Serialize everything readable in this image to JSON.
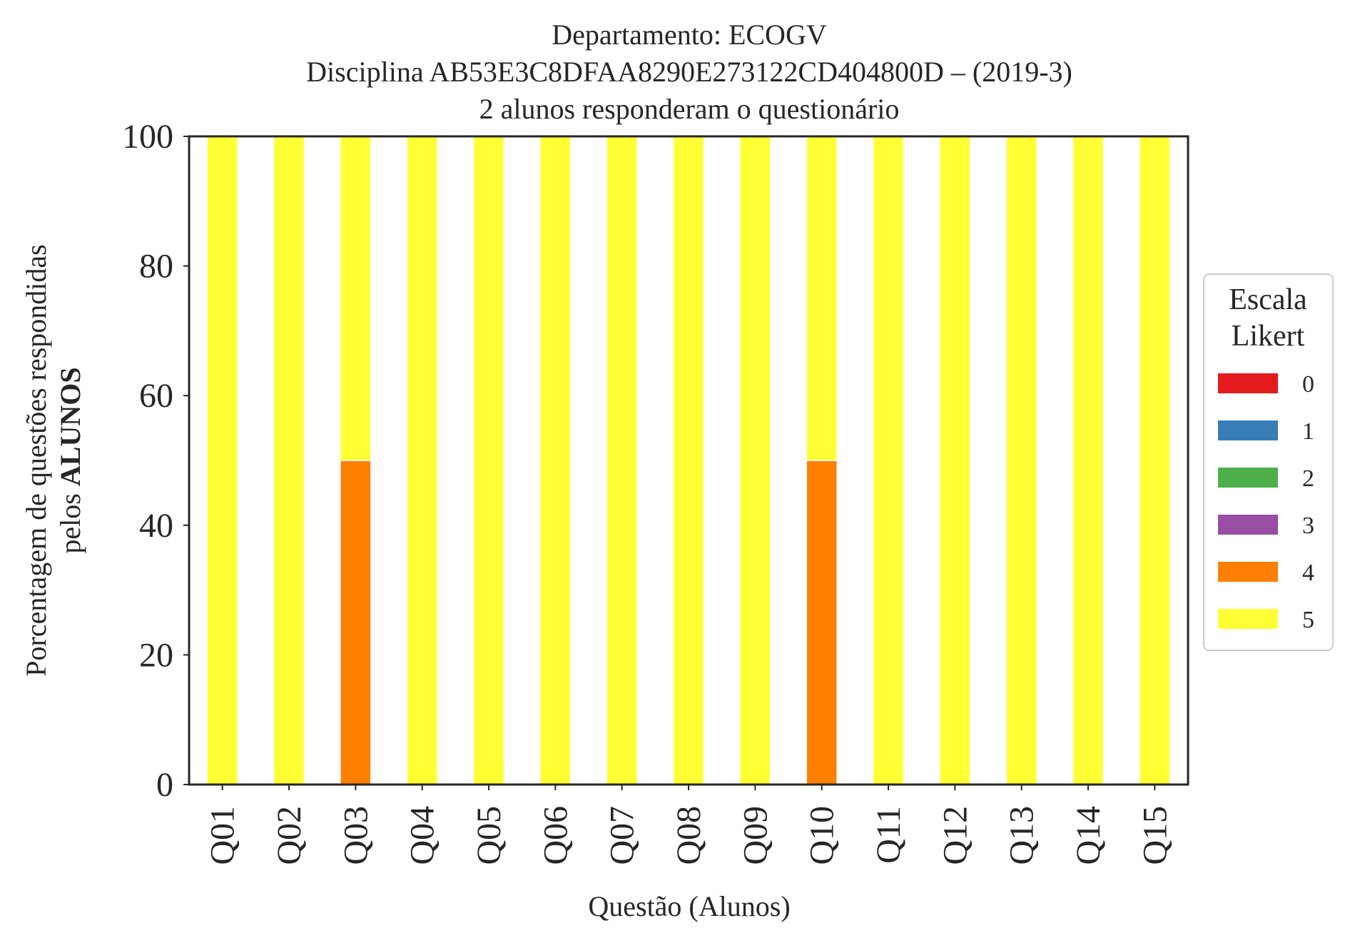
{
  "chart_data": {
    "type": "bar",
    "stacked": true,
    "title": [
      "Departamento: ECOGV",
      "Disciplina AB53E3C8DFAA8290E273122CD404800D – (2019-3)",
      "2 alunos responderam o questionário"
    ],
    "xlabel": "Questão (Alunos)",
    "ylabel": {
      "line1": "Porcentagem de questões respondidas",
      "line2_prefix": "pelos ",
      "line2_bold": "ALUNOS"
    },
    "ylim": [
      0,
      100
    ],
    "yticks": [
      "0",
      "20",
      "40",
      "60",
      "80",
      "100"
    ],
    "categories": [
      "Q01",
      "Q02",
      "Q03",
      "Q04",
      "Q05",
      "Q06",
      "Q07",
      "Q08",
      "Q09",
      "Q10",
      "Q11",
      "Q12",
      "Q13",
      "Q14",
      "Q15"
    ],
    "series": [
      {
        "name": "0",
        "color": "#e41a1c",
        "values": [
          0,
          0,
          0,
          0,
          0,
          0,
          0,
          0,
          0,
          0,
          0,
          0,
          0,
          0,
          0
        ]
      },
      {
        "name": "1",
        "color": "#377eb8",
        "values": [
          0,
          0,
          0,
          0,
          0,
          0,
          0,
          0,
          0,
          0,
          0,
          0,
          0,
          0,
          0
        ]
      },
      {
        "name": "2",
        "color": "#4daf4a",
        "values": [
          0,
          0,
          0,
          0,
          0,
          0,
          0,
          0,
          0,
          0,
          0,
          0,
          0,
          0,
          0
        ]
      },
      {
        "name": "3",
        "color": "#984ea3",
        "values": [
          0,
          0,
          0,
          0,
          0,
          0,
          0,
          0,
          0,
          0,
          0,
          0,
          0,
          0,
          0
        ]
      },
      {
        "name": "4",
        "color": "#ff7f00",
        "values": [
          0,
          0,
          50,
          0,
          0,
          0,
          0,
          0,
          0,
          50,
          0,
          0,
          0,
          0,
          0
        ]
      },
      {
        "name": "5",
        "color": "#ffff33",
        "values": [
          100,
          100,
          50,
          100,
          100,
          100,
          100,
          100,
          100,
          50,
          100,
          100,
          100,
          100,
          100
        ]
      }
    ],
    "legend": {
      "title": [
        "Escala",
        "Likert"
      ],
      "placement": "right"
    },
    "grid": false
  }
}
